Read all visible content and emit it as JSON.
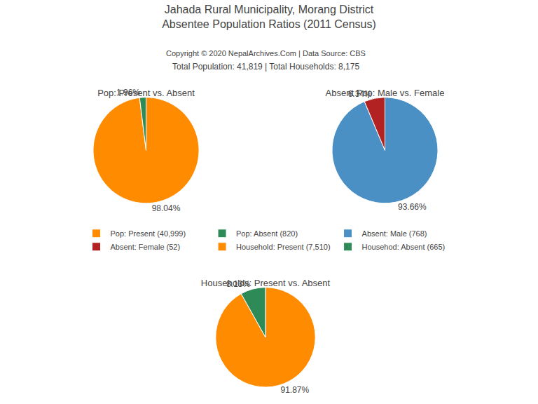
{
  "title": "Jahada Rural Municipality, Morang District\nAbsentee Population Ratios (2011 Census)",
  "subtitle": "Copyright © 2020 NepalArchives.Com | Data Source: CBS",
  "annotations": [
    "Total Population: 41,819 | Total Households: 8,175"
  ],
  "chart_data": [
    {
      "type": "pie",
      "title": "Pop: Present vs. Absent",
      "categories": [
        "Pop: Present (40,999)",
        "Pop: Absent (820)"
      ],
      "values": [
        98.04,
        1.96
      ],
      "value_labels": [
        "98.04%",
        "1.96%"
      ],
      "colors": [
        "#FF8C00",
        "#2E8B57"
      ],
      "data_labels": true
    },
    {
      "type": "pie",
      "title": "Absent Pop: Male vs. Female",
      "categories": [
        "Absent: Male (768)",
        "Absent: Female (52)"
      ],
      "values": [
        93.66,
        6.34
      ],
      "value_labels": [
        "93.66%",
        "6.34%"
      ],
      "colors": [
        "#4A90C4",
        "#B22222"
      ],
      "data_labels": true
    },
    {
      "type": "pie",
      "title": "Households: Present vs. Absent",
      "categories": [
        "Household: Present (7,510)",
        "Househod: Absent (665)"
      ],
      "values": [
        91.87,
        8.13
      ],
      "value_labels": [
        "91.87%",
        "8.13%"
      ],
      "colors": [
        "#FF8C00",
        "#2E8B57"
      ],
      "data_labels": true
    }
  ]
}
